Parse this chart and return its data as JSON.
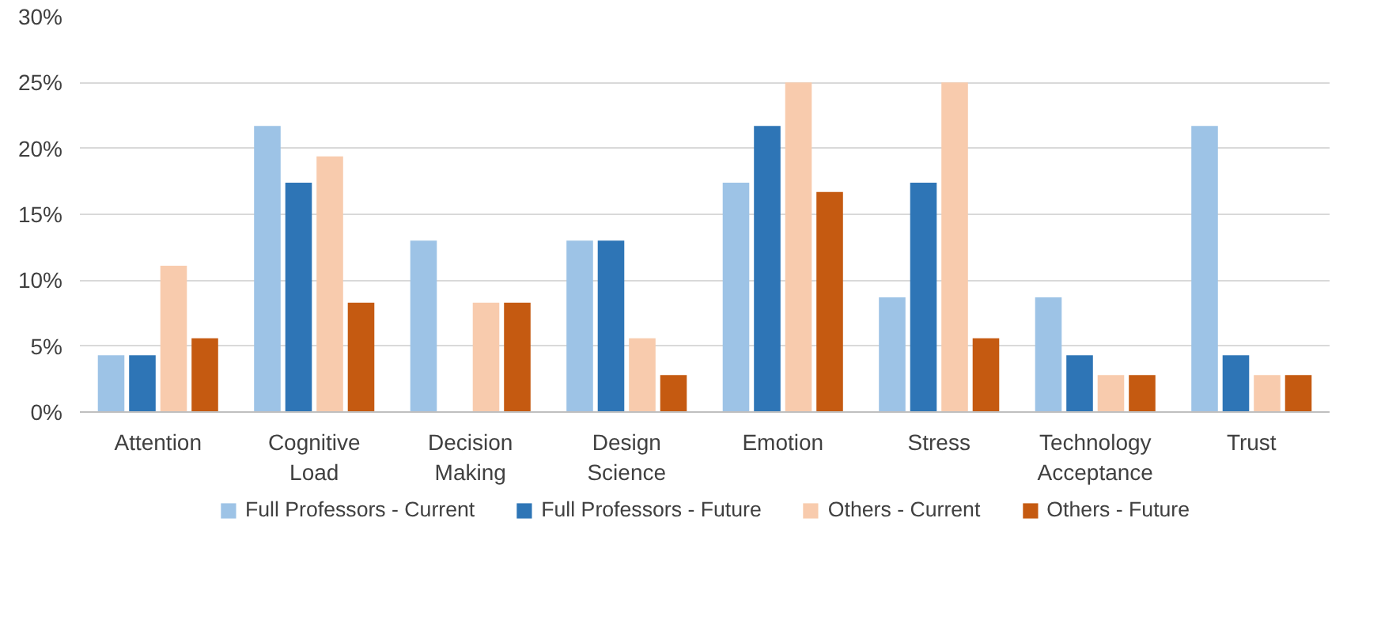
{
  "chart_data": {
    "type": "bar",
    "categories": [
      "Attention",
      "Cognitive Load",
      "Decision Making",
      "Design Science",
      "Emotion",
      "Stress",
      "Technology Acceptance",
      "Trust"
    ],
    "series": [
      {
        "name": "Full Professors - Current",
        "color": "#9dc3e6",
        "values": [
          4.3,
          21.7,
          13.0,
          13.0,
          17.4,
          8.7,
          8.7,
          21.7
        ]
      },
      {
        "name": "Full Professors - Future",
        "color": "#2e75b6",
        "values": [
          4.3,
          17.4,
          0,
          13.0,
          21.7,
          17.4,
          4.3,
          4.3
        ]
      },
      {
        "name": "Others - Current",
        "color": "#f8cbad",
        "values": [
          11.1,
          19.4,
          8.3,
          5.6,
          25.0,
          25.0,
          2.8,
          2.8
        ]
      },
      {
        "name": "Others - Future",
        "color": "#c55a11",
        "values": [
          5.6,
          8.3,
          8.3,
          2.8,
          16.7,
          5.6,
          2.8,
          2.8
        ]
      }
    ],
    "ylim": [
      0,
      30
    ],
    "yticks": [
      {
        "value": 0,
        "label": "0%"
      },
      {
        "value": 5,
        "label": "5%"
      },
      {
        "value": 10,
        "label": "10%"
      },
      {
        "value": 15,
        "label": "15%"
      },
      {
        "value": 20,
        "label": "20%"
      },
      {
        "value": 25,
        "label": "25%"
      },
      {
        "value": 30,
        "label": "30%"
      }
    ],
    "grid": "y",
    "legend": "bottom"
  }
}
